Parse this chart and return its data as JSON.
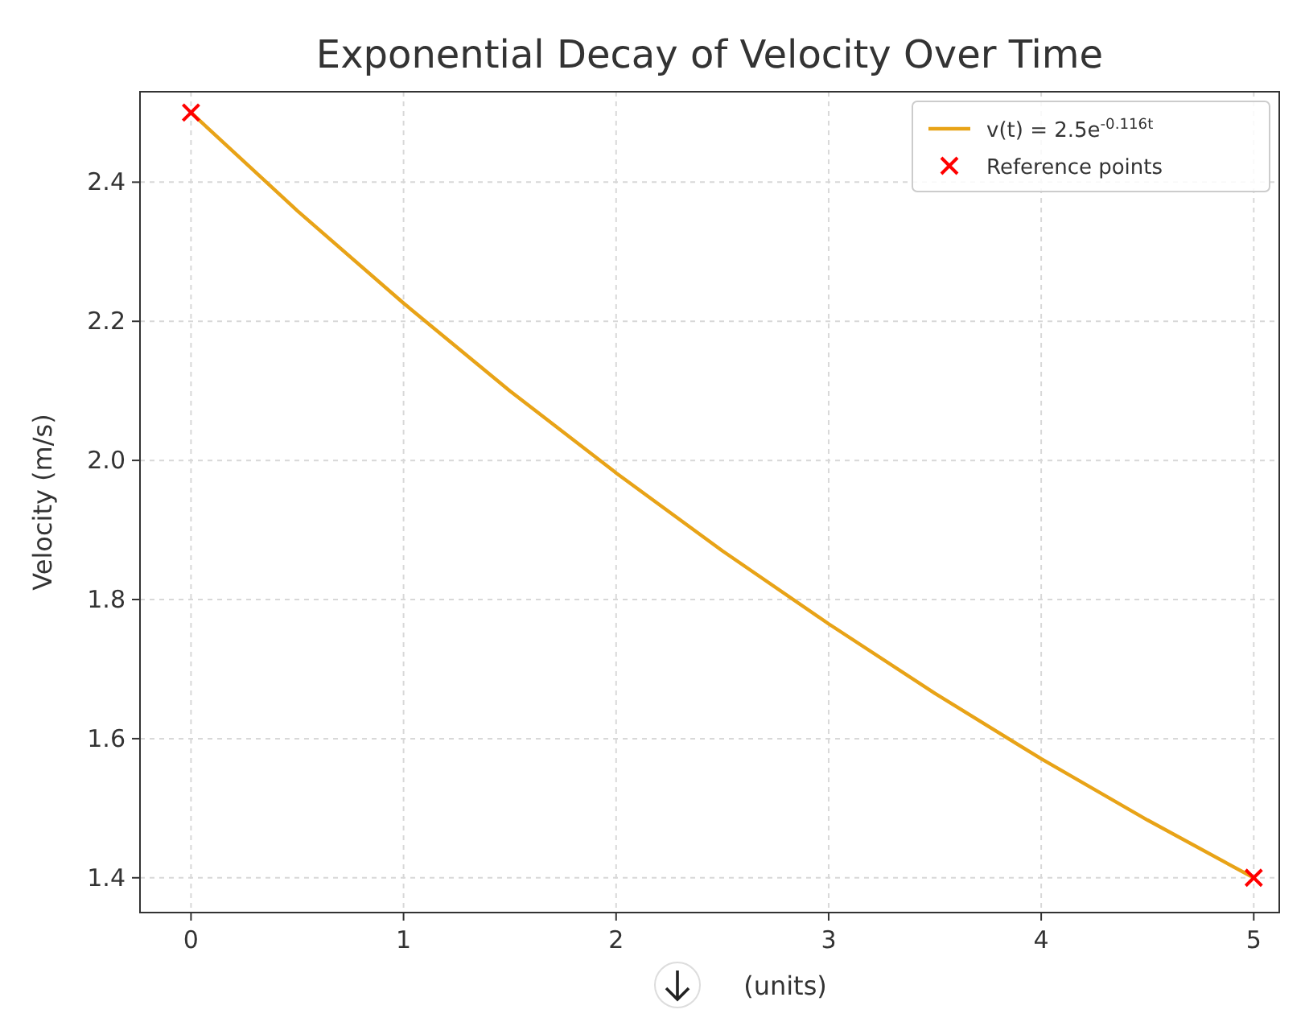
{
  "chart_data": {
    "type": "line",
    "title": "Exponential Decay of Velocity Over Time",
    "xlabel": "(units)",
    "ylabel": "Velocity (m/s)",
    "xlim": [
      -0.24,
      5.12
    ],
    "ylim": [
      1.35,
      2.53
    ],
    "xticks": [
      0,
      1,
      2,
      3,
      4,
      5
    ],
    "yticks": [
      1.4,
      1.6,
      1.8,
      {
        "value": 2,
        "label": "2.0"
      },
      2.2,
      2.4
    ],
    "grid": true,
    "legend": "top right",
    "series": [
      {
        "name": "v(t) = 2.5e$^{-0.116t}$",
        "color": "#e8a317",
        "marker": "none",
        "x": [
          0,
          0.5,
          1,
          1.5,
          2,
          2.5,
          3,
          3.5,
          4,
          4.5,
          5
        ],
        "values": [
          2.5,
          2.359,
          2.226,
          2.1,
          1.982,
          1.87,
          1.765,
          1.665,
          1.571,
          1.483,
          1.4
        ]
      },
      {
        "name": "Reference points",
        "color": "#ff0000",
        "type": "scatter",
        "marker": "cross",
        "x": [
          0,
          5
        ],
        "values": [
          2.5,
          1.4
        ]
      }
    ]
  }
}
